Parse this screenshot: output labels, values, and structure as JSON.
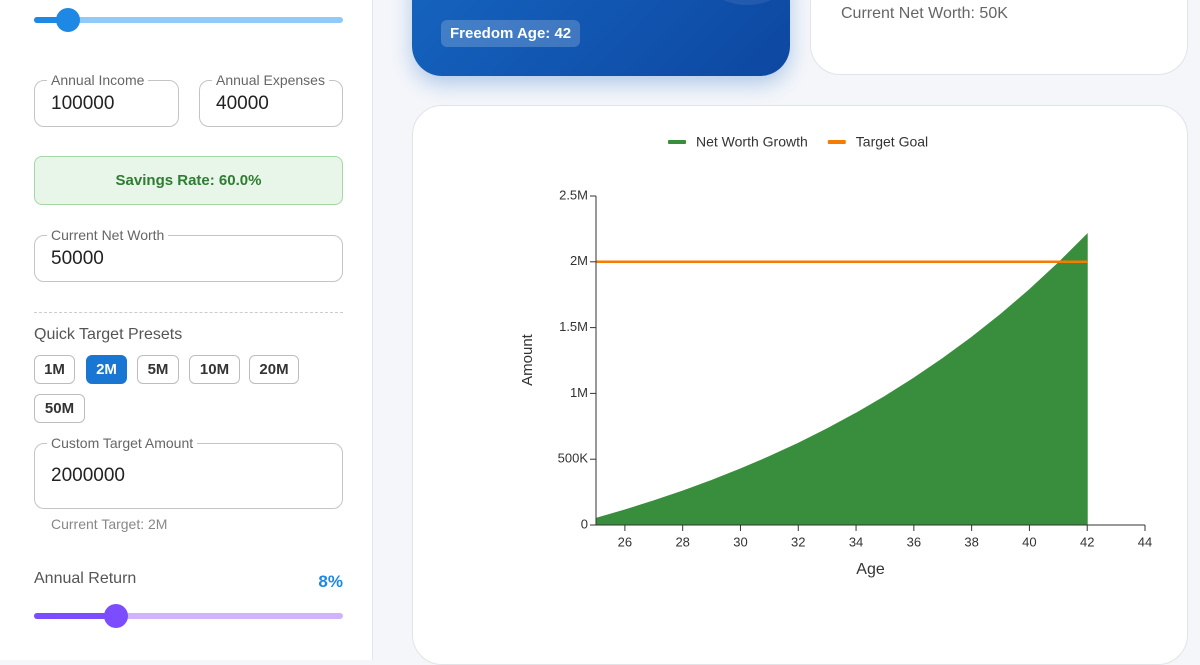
{
  "sidebar": {
    "annual_income": {
      "label": "Annual Income",
      "value": "100000"
    },
    "annual_expenses": {
      "label": "Annual Expenses",
      "value": "40000"
    },
    "savings_rate": "Savings Rate: 60.0%",
    "current_net_worth": {
      "label": "Current Net Worth",
      "value": "50000"
    },
    "presets": {
      "title": "Quick Target Presets",
      "items": [
        "1M",
        "2M",
        "5M",
        "10M",
        "20M",
        "50M"
      ],
      "active": 1
    },
    "custom_target": {
      "label": "Custom Target Amount",
      "value": "2000000"
    },
    "current_target": "Current Target: 2M",
    "annual_return": {
      "label": "Annual Return",
      "value": "8%"
    }
  },
  "cards": {
    "freedom_age": "Freedom Age: 42",
    "net_worth": "Current Net Worth: 50K"
  },
  "chart_data": {
    "type": "area",
    "legend": "top",
    "x_label": "Age",
    "y_label": "Amount",
    "x": [
      25,
      26,
      27,
      28,
      29,
      30,
      31,
      32,
      33,
      34,
      35,
      36,
      37,
      38,
      39,
      40,
      41,
      42
    ],
    "series": [
      {
        "name": "Net Worth Growth",
        "color": "#388e3c",
        "values": [
          50000,
          114000,
          183120,
          257770,
          338391,
          425462,
          519499,
          621059,
          730744,
          849204,
          977140,
          1115311,
          1264536,
          1425699,
          1599755,
          1787736,
          1990755,
          2210015
        ]
      },
      {
        "name": "Target Goal",
        "color": "#f57c00",
        "values": [
          2000000,
          2000000,
          2000000,
          2000000,
          2000000,
          2000000,
          2000000,
          2000000,
          2000000,
          2000000,
          2000000,
          2000000,
          2000000,
          2000000,
          2000000,
          2000000,
          2000000,
          2000000
        ]
      }
    ],
    "xlim": [
      25,
      44
    ],
    "xticks": [
      26,
      28,
      30,
      32,
      34,
      36,
      38,
      40,
      42,
      44
    ],
    "ylim": [
      0,
      2500000
    ],
    "yticks": [
      0,
      {
        "value": 500000,
        "label": "500K"
      },
      {
        "value": 1000000,
        "label": "1M"
      },
      {
        "value": 1500000,
        "label": "1.5M"
      },
      {
        "value": 2000000,
        "label": "2M"
      },
      {
        "value": 2500000,
        "label": "2.5M"
      }
    ]
  }
}
